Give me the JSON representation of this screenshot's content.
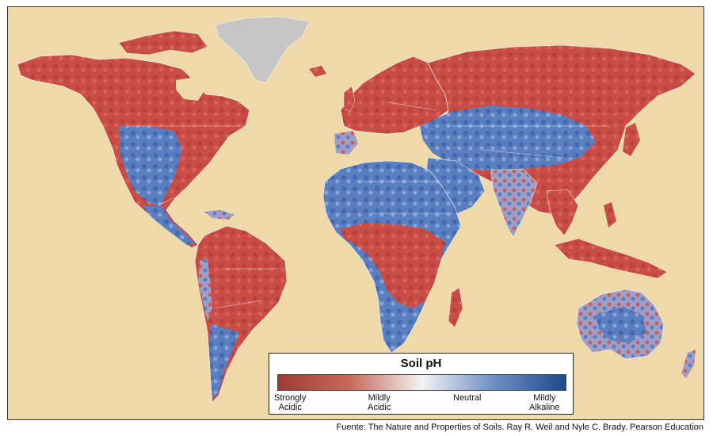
{
  "legend": {
    "title": "Soil pH",
    "labels": {
      "strongly_acidic": "Strongly\nAcidic",
      "mildly_acidic": "Mildly\nAcidic",
      "neutral": "Neutral",
      "mildly_alkaline": "Mildly\nAlkaline"
    },
    "gradient_colors": [
      "#9e3a35",
      "#c86a5a",
      "#f2f2f2",
      "#6e8fc6",
      "#1d4a8c"
    ]
  },
  "source": "Fuente: The Nature and Properties of Soils. Ray R. Weil and Nyle C. Brady. Pearson Education",
  "colors": {
    "ocean": "#f0d9a8",
    "acidic": "#c84e48",
    "alkaline": "#4d72b8",
    "ice": "#c8c8c8",
    "borders": "#e9e2ee"
  }
}
